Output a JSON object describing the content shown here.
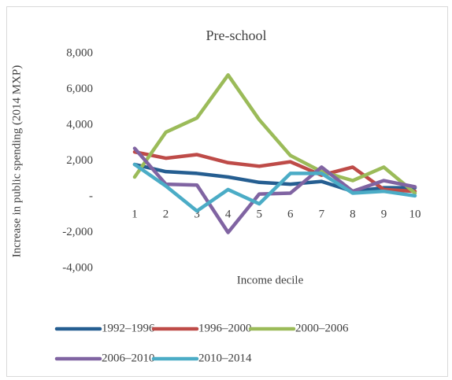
{
  "chart_data": {
    "type": "line",
    "title": "Pre-school",
    "x_label": "Income decile",
    "y_label": "Increase in public spending  (2014 MXP)",
    "categories": [
      "1",
      "2",
      "3",
      "4",
      "5",
      "6",
      "7",
      "8",
      "9",
      "10"
    ],
    "series": [
      {
        "name": "1992–1996",
        "color": "#255e91",
        "values": [
          1800,
          1400,
          1300,
          1100,
          800,
          700,
          850,
          300,
          500,
          500
        ]
      },
      {
        "name": "1996–2000",
        "color": "#be4b48",
        "values": [
          2500,
          2150,
          2350,
          1900,
          1700,
          1950,
          1200,
          1650,
          400,
          300
        ]
      },
      {
        "name": "2000–2006",
        "color": "#9bbb59",
        "values": [
          1100,
          3600,
          4400,
          6800,
          4300,
          2300,
          1400,
          900,
          1650,
          200
        ]
      },
      {
        "name": "2006–2010",
        "color": "#8064a2",
        "values": [
          2700,
          700,
          650,
          -2000,
          150,
          200,
          1650,
          300,
          900,
          550
        ]
      },
      {
        "name": "2010–2014",
        "color": "#4bacc6",
        "values": [
          1800,
          600,
          -800,
          400,
          -400,
          1300,
          1300,
          200,
          300,
          50
        ]
      }
    ],
    "ylim": [
      -4000,
      8000
    ],
    "yticks": [
      {
        "value": -4000,
        "label": "-4,000"
      },
      {
        "value": -2000,
        "label": "-2,000"
      },
      {
        "value": 0,
        "label": "-"
      },
      {
        "value": 2000,
        "label": "2,000"
      },
      {
        "value": 4000,
        "label": "4,000"
      },
      {
        "value": 6000,
        "label": "6,000"
      },
      {
        "value": 8000,
        "label": "8,000"
      }
    ],
    "grid": false,
    "legend": "bottom"
  }
}
